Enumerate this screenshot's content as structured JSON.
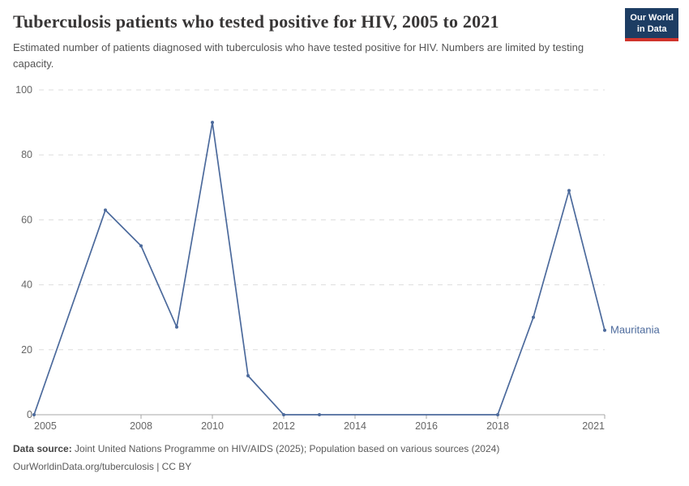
{
  "header": {
    "logo": {
      "line1": "Our World",
      "line2": "in Data"
    }
  },
  "chart_data": {
    "type": "line",
    "title": "Tuberculosis patients who tested positive for HIV, 2005 to 2021",
    "subtitle": "Estimated number of patients diagnosed with tuberculosis who have tested positive for HIV. Numbers are limited by testing capacity.",
    "xlabel": "",
    "ylabel": "",
    "xlim": [
      2005,
      2021
    ],
    "ylim": [
      0,
      100
    ],
    "grid": "horizontal-dashed",
    "legend_position": "end-of-line",
    "x_ticks": [
      2005,
      2008,
      2010,
      2012,
      2014,
      2016,
      2018,
      2021
    ],
    "y_ticks": [
      0,
      20,
      40,
      60,
      80,
      100
    ],
    "series": [
      {
        "name": "Mauritania",
        "color": "#4c6a9c",
        "points": [
          {
            "year": 2005,
            "value": 0
          },
          {
            "year": 2007,
            "value": 63
          },
          {
            "year": 2008,
            "value": 52
          },
          {
            "year": 2009,
            "value": 27
          },
          {
            "year": 2010,
            "value": 90
          },
          {
            "year": 2011,
            "value": 12
          },
          {
            "year": 2012,
            "value": 0
          },
          {
            "year": 2013,
            "value": 0
          },
          {
            "year": 2018,
            "value": 0
          },
          {
            "year": 2019,
            "value": 30
          },
          {
            "year": 2020,
            "value": 69
          },
          {
            "year": 2021,
            "value": 26
          }
        ]
      }
    ]
  },
  "footer": {
    "source_label": "Data source:",
    "source_text": "Joint United Nations Programme on HIV/AIDS (2025); Population based on various sources (2024)",
    "license_line": "OurWorldinData.org/tuberculosis | CC BY"
  },
  "colors": {
    "line": "#4c6a9c",
    "grid": "#dddddd",
    "axis": "#a7a7a7",
    "axis_text": "#666666",
    "title_text": "#383636",
    "logo_bg": "#1d3d63",
    "logo_accent": "#d0342c"
  }
}
